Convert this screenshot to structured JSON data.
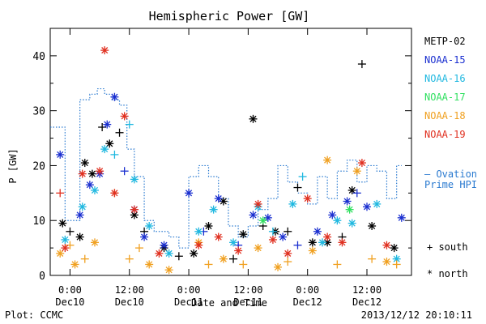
{
  "chart_data": {
    "type": "scatter",
    "title": "Hemispheric Power [GW]",
    "ylabel": "P [GW]",
    "xlabel": "Date and Time",
    "ylim": [
      0,
      45
    ],
    "xlim": [
      "2013-12-09 20:00",
      "2013-12-12 21:00"
    ],
    "y_ticks": [
      "0",
      "10",
      "20",
      "30",
      "40"
    ],
    "x_ticks": [
      {
        "x": "2013-12-10 00:00",
        "time": "0:00",
        "date": "Dec10"
      },
      {
        "x": "2013-12-10 12:00",
        "time": "12:00",
        "date": "Dec10"
      },
      {
        "x": "2013-12-11 00:00",
        "time": "0:00",
        "date": "Dec11"
      },
      {
        "x": "2013-12-11 12:00",
        "time": "12:00",
        "date": "Dec11"
      },
      {
        "x": "2013-12-12 00:00",
        "time": "0:00",
        "date": "Dec12"
      },
      {
        "x": "2013-12-12 12:00",
        "time": "12:00",
        "date": "Dec12"
      }
    ],
    "legend_position": "right",
    "marker_legend": {
      "south": "+ south",
      "north": "* north"
    },
    "series": [
      {
        "name": "METP-02",
        "color": "#000000",
        "points": [
          [
            "2013-12-09 22:30",
            9.5,
            "*"
          ],
          [
            "2013-12-10 00:00",
            8,
            "+"
          ],
          [
            "2013-12-10 02:00",
            7,
            "*"
          ],
          [
            "2013-12-10 03:00",
            20.5,
            "*"
          ],
          [
            "2013-12-10 04:30",
            18.5,
            "*"
          ],
          [
            "2013-12-10 06:30",
            27,
            "+"
          ],
          [
            "2013-12-10 08:00",
            24,
            "*"
          ],
          [
            "2013-12-10 10:00",
            26,
            "+"
          ],
          [
            "2013-12-10 13:00",
            11,
            "*"
          ],
          [
            "2013-12-10 15:00",
            8,
            "+"
          ],
          [
            "2013-12-10 19:00",
            5,
            "*"
          ],
          [
            "2013-12-10 22:00",
            3.5,
            "+"
          ],
          [
            "2013-12-11 01:00",
            4,
            "*"
          ],
          [
            "2013-12-11 04:00",
            9,
            "*"
          ],
          [
            "2013-12-11 07:00",
            13.5,
            "*"
          ],
          [
            "2013-12-11 09:00",
            3,
            "+"
          ],
          [
            "2013-12-11 11:00",
            7.5,
            "*"
          ],
          [
            "2013-12-11 13:00",
            28.5,
            "*"
          ],
          [
            "2013-12-11 15:00",
            9,
            "+"
          ],
          [
            "2013-12-11 17:30",
            8,
            "*"
          ],
          [
            "2013-12-11 20:00",
            8,
            "+"
          ],
          [
            "2013-12-11 22:00",
            16,
            "+"
          ],
          [
            "2013-12-12 01:00",
            6,
            "*"
          ],
          [
            "2013-12-12 04:00",
            6,
            "*"
          ],
          [
            "2013-12-12 07:00",
            7,
            "+"
          ],
          [
            "2013-12-12 09:00",
            15.5,
            "*"
          ],
          [
            "2013-12-12 11:00",
            38.5,
            "+"
          ],
          [
            "2013-12-12 13:00",
            9,
            "*"
          ],
          [
            "2013-12-12 17:30",
            5,
            "*"
          ]
        ]
      },
      {
        "name": "NOAA-15",
        "color": "#1a2fd0",
        "points": [
          [
            "2013-12-09 22:00",
            22,
            "*"
          ],
          [
            "2013-12-10 02:00",
            11,
            "*"
          ],
          [
            "2013-12-10 04:00",
            16.5,
            "*"
          ],
          [
            "2013-12-10 06:00",
            18.5,
            "*"
          ],
          [
            "2013-12-10 07:30",
            27.5,
            "*"
          ],
          [
            "2013-12-10 09:00",
            32.5,
            "*"
          ],
          [
            "2013-12-10 11:00",
            19,
            "+"
          ],
          [
            "2013-12-10 13:00",
            12,
            "*"
          ],
          [
            "2013-12-10 15:00",
            7,
            "*"
          ],
          [
            "2013-12-10 19:00",
            5.5,
            "*"
          ],
          [
            "2013-12-11 00:00",
            15,
            "*"
          ],
          [
            "2013-12-11 03:00",
            8,
            "+"
          ],
          [
            "2013-12-11 06:00",
            14,
            "*"
          ],
          [
            "2013-12-11 10:00",
            5.5,
            "+"
          ],
          [
            "2013-12-11 13:00",
            11,
            "*"
          ],
          [
            "2013-12-11 16:00",
            10.5,
            "*"
          ],
          [
            "2013-12-11 19:00",
            7,
            "*"
          ],
          [
            "2013-12-11 22:00",
            5.5,
            "+"
          ],
          [
            "2013-12-12 02:00",
            8,
            "*"
          ],
          [
            "2013-12-12 05:00",
            11,
            "*"
          ],
          [
            "2013-12-12 08:00",
            13.5,
            "*"
          ],
          [
            "2013-12-12 10:00",
            15,
            "+"
          ],
          [
            "2013-12-12 12:00",
            12.5,
            "*"
          ],
          [
            "2013-12-12 19:00",
            10.5,
            "*"
          ]
        ]
      },
      {
        "name": "NOAA-16",
        "color": "#20b8e0",
        "points": [
          [
            "2013-12-09 23:00",
            6.5,
            "*"
          ],
          [
            "2013-12-10 02:30",
            12.5,
            "*"
          ],
          [
            "2013-12-10 05:00",
            15.5,
            "*"
          ],
          [
            "2013-12-10 07:00",
            23,
            "*"
          ],
          [
            "2013-12-10 09:00",
            22,
            "+"
          ],
          [
            "2013-12-10 12:00",
            27.5,
            "+"
          ],
          [
            "2013-12-10 13:00",
            17.5,
            "*"
          ],
          [
            "2013-12-10 16:00",
            9,
            "*"
          ],
          [
            "2013-12-10 20:00",
            4,
            "*"
          ],
          [
            "2013-12-11 02:00",
            8,
            "*"
          ],
          [
            "2013-12-11 05:00",
            12,
            "*"
          ],
          [
            "2013-12-11 09:00",
            6,
            "*"
          ],
          [
            "2013-12-11 14:00",
            12.5,
            "*"
          ],
          [
            "2013-12-11 17:00",
            8,
            "+"
          ],
          [
            "2013-12-11 21:00",
            13,
            "*"
          ],
          [
            "2013-12-11 23:00",
            18,
            "+"
          ],
          [
            "2013-12-12 03:00",
            6,
            "*"
          ],
          [
            "2013-12-12 06:00",
            10,
            "*"
          ],
          [
            "2013-12-12 09:00",
            9.5,
            "*"
          ],
          [
            "2013-12-12 14:00",
            13,
            "*"
          ],
          [
            "2013-12-12 18:00",
            3,
            "*"
          ]
        ]
      },
      {
        "name": "NOAA-17",
        "color": "#30e060",
        "points": [
          [
            "2013-12-11 15:00",
            10,
            "*"
          ],
          [
            "2013-12-12 08:30",
            12,
            "*"
          ]
        ]
      },
      {
        "name": "NOAA-18",
        "color": "#f0a020",
        "points": [
          [
            "2013-12-09 22:00",
            4,
            "*"
          ],
          [
            "2013-12-10 00:00",
            5.5,
            "+"
          ],
          [
            "2013-12-10 01:00",
            2,
            "*"
          ],
          [
            "2013-12-10 03:00",
            3,
            "+"
          ],
          [
            "2013-12-10 05:00",
            6,
            "*"
          ],
          [
            "2013-12-10 09:00",
            15,
            "+"
          ],
          [
            "2013-12-10 12:00",
            3,
            "+"
          ],
          [
            "2013-12-10 14:00",
            5,
            "+"
          ],
          [
            "2013-12-10 16:00",
            2,
            "*"
          ],
          [
            "2013-12-10 20:00",
            1,
            "*"
          ],
          [
            "2013-12-11 02:00",
            6,
            "*"
          ],
          [
            "2013-12-11 04:00",
            2,
            "+"
          ],
          [
            "2013-12-11 07:00",
            3,
            "*"
          ],
          [
            "2013-12-11 11:00",
            2,
            "+"
          ],
          [
            "2013-12-11 14:00",
            5,
            "*"
          ],
          [
            "2013-12-11 18:00",
            1.5,
            "*"
          ],
          [
            "2013-12-11 20:00",
            2.5,
            "+"
          ],
          [
            "2013-12-12 01:00",
            4.5,
            "*"
          ],
          [
            "2013-12-12 04:00",
            21,
            "*"
          ],
          [
            "2013-12-12 06:00",
            2,
            "+"
          ],
          [
            "2013-12-12 10:00",
            19,
            "*"
          ],
          [
            "2013-12-12 13:00",
            3,
            "+"
          ],
          [
            "2013-12-12 16:00",
            2.5,
            "*"
          ],
          [
            "2013-12-12 18:00",
            2,
            "+"
          ]
        ]
      },
      {
        "name": "NOAA-19",
        "color": "#e03020",
        "points": [
          [
            "2013-12-09 22:00",
            15,
            "+"
          ],
          [
            "2013-12-09 23:00",
            5,
            "*"
          ],
          [
            "2013-12-10 02:30",
            18.5,
            "*"
          ],
          [
            "2013-12-10 06:00",
            19,
            "*"
          ],
          [
            "2013-12-10 07:00",
            41,
            "*"
          ],
          [
            "2013-12-10 09:00",
            15,
            "*"
          ],
          [
            "2013-12-10 11:00",
            29,
            "*"
          ],
          [
            "2013-12-10 13:00",
            12,
            "*"
          ],
          [
            "2013-12-10 18:00",
            4,
            "*"
          ],
          [
            "2013-12-11 02:00",
            5.5,
            "*"
          ],
          [
            "2013-12-11 06:00",
            7,
            "*"
          ],
          [
            "2013-12-11 10:00",
            4.5,
            "*"
          ],
          [
            "2013-12-11 14:00",
            13,
            "*"
          ],
          [
            "2013-12-11 17:00",
            6.5,
            "*"
          ],
          [
            "2013-12-11 20:00",
            4,
            "*"
          ],
          [
            "2013-12-12 00:00",
            14,
            "*"
          ],
          [
            "2013-12-12 04:00",
            7,
            "*"
          ],
          [
            "2013-12-12 07:00",
            6,
            "*"
          ],
          [
            "2013-12-12 11:00",
            20.5,
            "*"
          ],
          [
            "2013-12-12 16:00",
            5.5,
            "*"
          ]
        ]
      },
      {
        "name": "Ovation Prime HPI",
        "color": "#2a7ad0",
        "style": "step-dotted",
        "label_lines": [
          "— Ovation",
          "Prime HPI"
        ],
        "steps": [
          [
            "2013-12-09 20:00",
            27
          ],
          [
            "2013-12-09 23:00",
            10
          ],
          [
            "2013-12-10 02:00",
            32
          ],
          [
            "2013-12-10 04:00",
            33
          ],
          [
            "2013-12-10 05:30",
            34
          ],
          [
            "2013-12-10 07:00",
            33
          ],
          [
            "2013-12-10 08:30",
            32
          ],
          [
            "2013-12-10 10:00",
            31
          ],
          [
            "2013-12-10 11:30",
            23
          ],
          [
            "2013-12-10 13:00",
            18
          ],
          [
            "2013-12-10 15:00",
            10
          ],
          [
            "2013-12-10 17:00",
            8
          ],
          [
            "2013-12-10 20:00",
            7
          ],
          [
            "2013-12-10 22:00",
            5
          ],
          [
            "2013-12-11 00:00",
            18
          ],
          [
            "2013-12-11 02:00",
            20
          ],
          [
            "2013-12-11 04:00",
            18
          ],
          [
            "2013-12-11 06:00",
            14
          ],
          [
            "2013-12-11 08:00",
            9
          ],
          [
            "2013-12-11 10:00",
            7
          ],
          [
            "2013-12-11 12:00",
            9
          ],
          [
            "2013-12-11 14:00",
            12
          ],
          [
            "2013-12-11 16:00",
            14
          ],
          [
            "2013-12-11 18:00",
            20
          ],
          [
            "2013-12-11 20:00",
            17
          ],
          [
            "2013-12-11 22:00",
            15
          ],
          [
            "2013-12-12 00:00",
            13
          ],
          [
            "2013-12-12 02:00",
            18
          ],
          [
            "2013-12-12 04:00",
            14
          ],
          [
            "2013-12-12 06:00",
            19
          ],
          [
            "2013-12-12 08:00",
            21
          ],
          [
            "2013-12-12 10:00",
            17
          ],
          [
            "2013-12-12 12:00",
            20
          ],
          [
            "2013-12-12 14:00",
            19
          ],
          [
            "2013-12-12 16:00",
            14
          ],
          [
            "2013-12-12 18:00",
            20
          ],
          [
            "2013-12-12 19:00",
            20
          ]
        ]
      }
    ]
  },
  "footer": {
    "plot_credit": "Plot: CCMC",
    "timestamp": "2013/12/12 20:10:11"
  }
}
